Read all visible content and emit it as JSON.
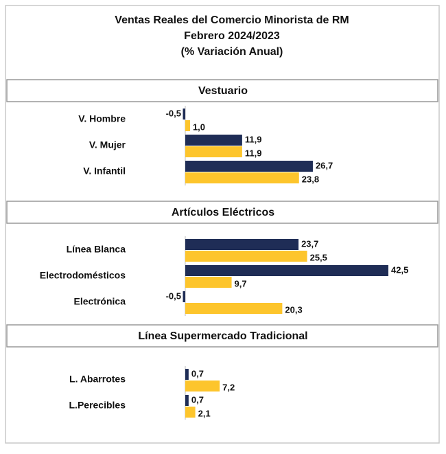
{
  "title_lines": [
    "Ventas Reales del Comercio Minorista de RM",
    "Febrero 2024/2023",
    "(% Variación Anual)"
  ],
  "chart_data": [
    {
      "type": "hbar",
      "title": "Vestuario",
      "categories": [
        "V. Hombre",
        "V. Mujer",
        "V. Infantil"
      ],
      "series": [
        {
          "color": "#1f2d56",
          "values": [
            -0.5,
            11.9,
            26.7
          ],
          "value_labels": [
            "-0,5",
            "11,9",
            "26,7"
          ]
        },
        {
          "color": "#fdc52c",
          "values": [
            1.0,
            11.9,
            23.8
          ],
          "value_labels": [
            "1,0",
            "11,9",
            "23,8"
          ]
        }
      ]
    },
    {
      "type": "hbar",
      "title": "Artículos Eléctricos",
      "categories": [
        "Línea Blanca",
        "Electrodomésticos",
        "Electrónica"
      ],
      "series": [
        {
          "color": "#1f2d56",
          "values": [
            23.7,
            42.5,
            -0.5
          ],
          "value_labels": [
            "23,7",
            "42,5",
            "-0,5"
          ]
        },
        {
          "color": "#fdc52c",
          "values": [
            25.5,
            9.7,
            20.3
          ],
          "value_labels": [
            "25,5",
            "9,7",
            "20,3"
          ]
        }
      ]
    },
    {
      "type": "hbar",
      "title": "Línea Supermercado Tradicional",
      "categories": [
        "L. Abarrotes",
        "L.Perecibles"
      ],
      "series": [
        {
          "color": "#1f2d56",
          "values": [
            0.7,
            0.7
          ],
          "value_labels": [
            "0,7",
            "0,7"
          ]
        },
        {
          "color": "#fdc52c",
          "values": [
            7.2,
            2.1
          ],
          "value_labels": [
            "7,2",
            "2,1"
          ]
        }
      ]
    }
  ]
}
